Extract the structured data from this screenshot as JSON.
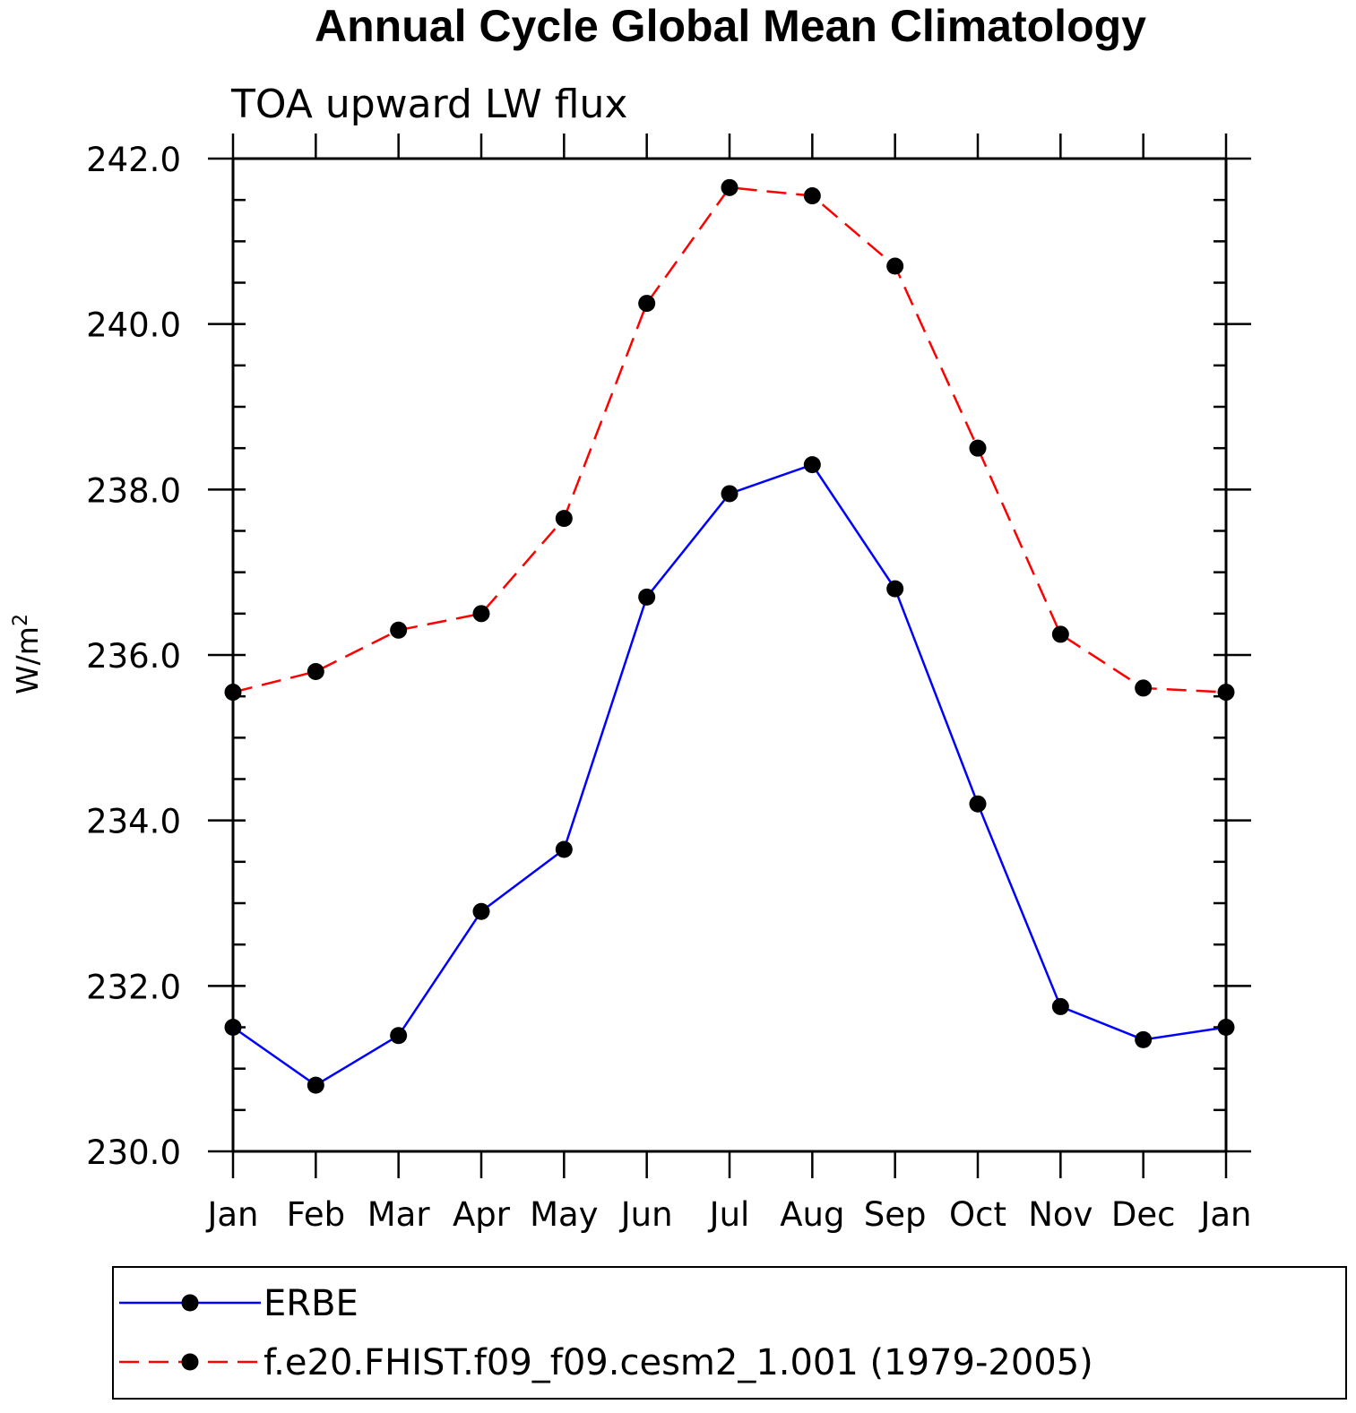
{
  "chart_data": {
    "type": "line",
    "title": "Annual Cycle Global Mean Climatology",
    "subtitle": "TOA upward LW flux",
    "ylabel": "W/m",
    "ylabel_superscript": "2",
    "ylim": [
      230.0,
      242.0
    ],
    "y_ticks": [
      "230.0",
      "232.0",
      "234.0",
      "236.0",
      "238.0",
      "240.0",
      "242.0"
    ],
    "categories": [
      "Jan",
      "Feb",
      "Mar",
      "Apr",
      "May",
      "Jun",
      "Jul",
      "Aug",
      "Sep",
      "Oct",
      "Nov",
      "Dec",
      "Jan"
    ],
    "grid": false,
    "legend_position": "bottom",
    "series": [
      {
        "name": "ERBE",
        "color": "#0000ff",
        "line_style": "solid",
        "values": [
          231.5,
          230.8,
          231.4,
          232.9,
          233.65,
          236.7,
          237.95,
          238.3,
          236.8,
          234.2,
          231.75,
          231.35,
          231.5
        ]
      },
      {
        "name": "f.e20.FHIST.f09_f09.cesm2_1.001 (1979-2005)",
        "color": "#ff0000",
        "line_style": "dashed",
        "values": [
          235.55,
          235.8,
          236.3,
          236.5,
          237.65,
          240.25,
          241.65,
          241.55,
          240.7,
          238.5,
          236.25,
          235.6,
          235.55
        ]
      }
    ]
  }
}
